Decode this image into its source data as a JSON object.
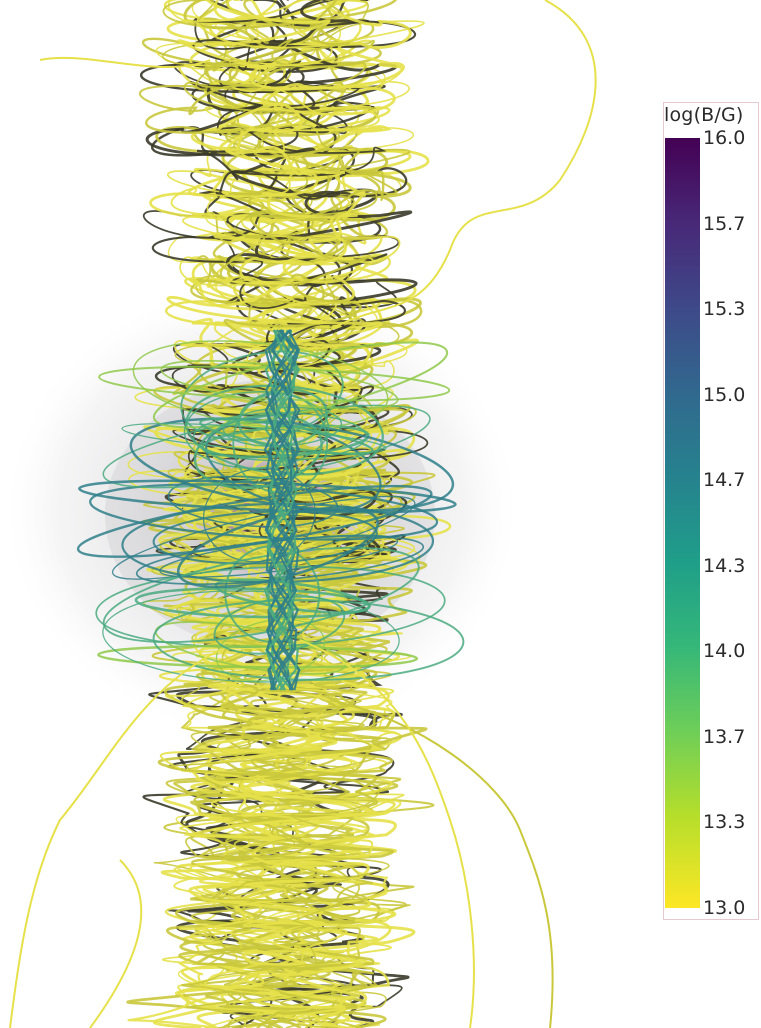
{
  "colorbar": {
    "title": "log(B/G)",
    "ticks": [
      "16.0",
      "15.7",
      "15.3",
      "15.0",
      "14.7",
      "14.3",
      "14.0",
      "13.7",
      "13.3",
      "13.0"
    ],
    "colormap": "viridis",
    "range": [
      13.0,
      16.0
    ]
  },
  "scene": {
    "background": "#ffffff",
    "cloud_color": "#c8c8cc",
    "core_color": "#8a4a6a",
    "field_line_colors": [
      "#e6e14a",
      "#c9c83c",
      "#8fc94a",
      "#4aaa80",
      "#2f7f8a",
      "#3a3a2a"
    ]
  }
}
